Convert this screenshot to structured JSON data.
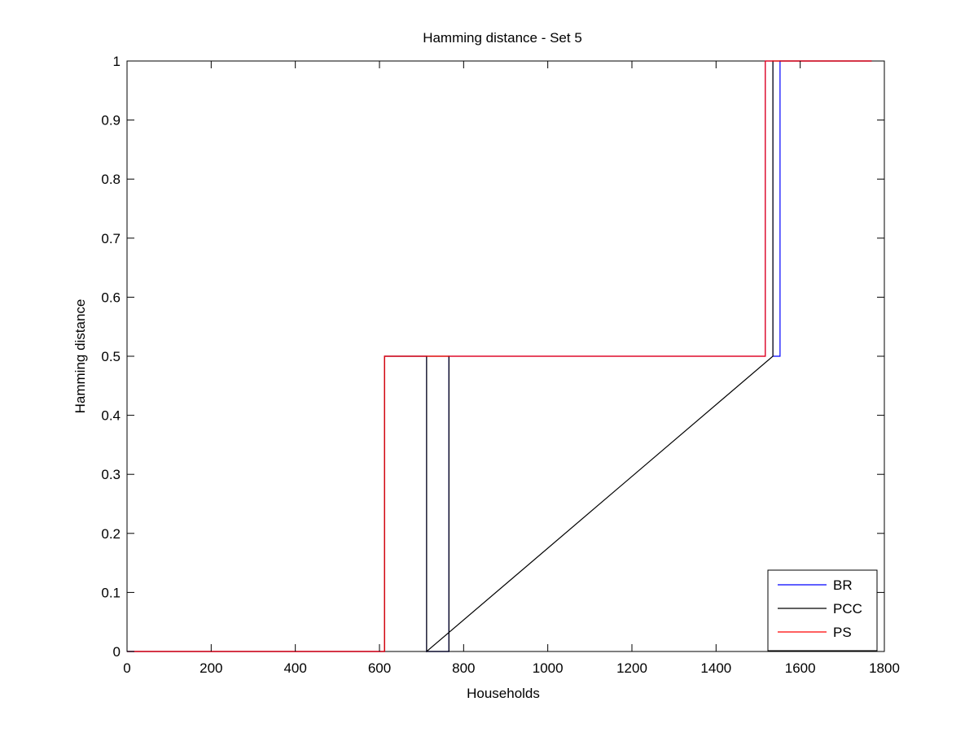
{
  "chart_data": {
    "type": "line",
    "title": "Hamming distance - Set 5",
    "xlabel": "Households",
    "ylabel": "Hamming distance",
    "xlim": [
      0,
      1800
    ],
    "ylim": [
      0,
      1
    ],
    "x_ticks": [
      0,
      200,
      400,
      600,
      800,
      1000,
      1200,
      1400,
      1600,
      1800
    ],
    "y_ticks": [
      0,
      0.1,
      0.2,
      0.3,
      0.4,
      0.5,
      0.6,
      0.7,
      0.8,
      0.9,
      1
    ],
    "x_tick_labels": [
      "0",
      "200",
      "400",
      "600",
      "800",
      "1000",
      "1200",
      "1400",
      "1600",
      "1800"
    ],
    "y_tick_labels": [
      "0",
      "0.1",
      "0.2",
      "0.3",
      "0.4",
      "0.5",
      "0.6",
      "0.7",
      "0.8",
      "0.9",
      "1"
    ],
    "grid": false,
    "legend_position": "bottom-right",
    "series": [
      {
        "name": "BR",
        "color": "#0000ff",
        "x": [
          0,
          612,
          612,
          712,
          712,
          765,
          765,
          1517,
          1517,
          1535,
          1535,
          1552,
          1552,
          1770
        ],
        "y": [
          0,
          0,
          0.5,
          0.5,
          0,
          0,
          0.5,
          0.5,
          1,
          1,
          0.5,
          0.5,
          1,
          1
        ]
      },
      {
        "name": "PCC",
        "color": "#000000",
        "x": [
          0,
          612,
          612,
          712,
          712,
          765,
          765,
          712,
          712,
          1535,
          1535,
          1770
        ],
        "y": [
          0,
          0,
          0.5,
          0.5,
          0,
          0,
          0.5,
          0.5,
          0,
          0.5,
          1,
          1
        ]
      },
      {
        "name": "PS",
        "color": "#ff0000",
        "x": [
          0,
          612,
          612,
          1517,
          1517,
          1770
        ],
        "y": [
          0,
          0,
          0.5,
          0.5,
          1,
          1
        ]
      }
    ]
  }
}
